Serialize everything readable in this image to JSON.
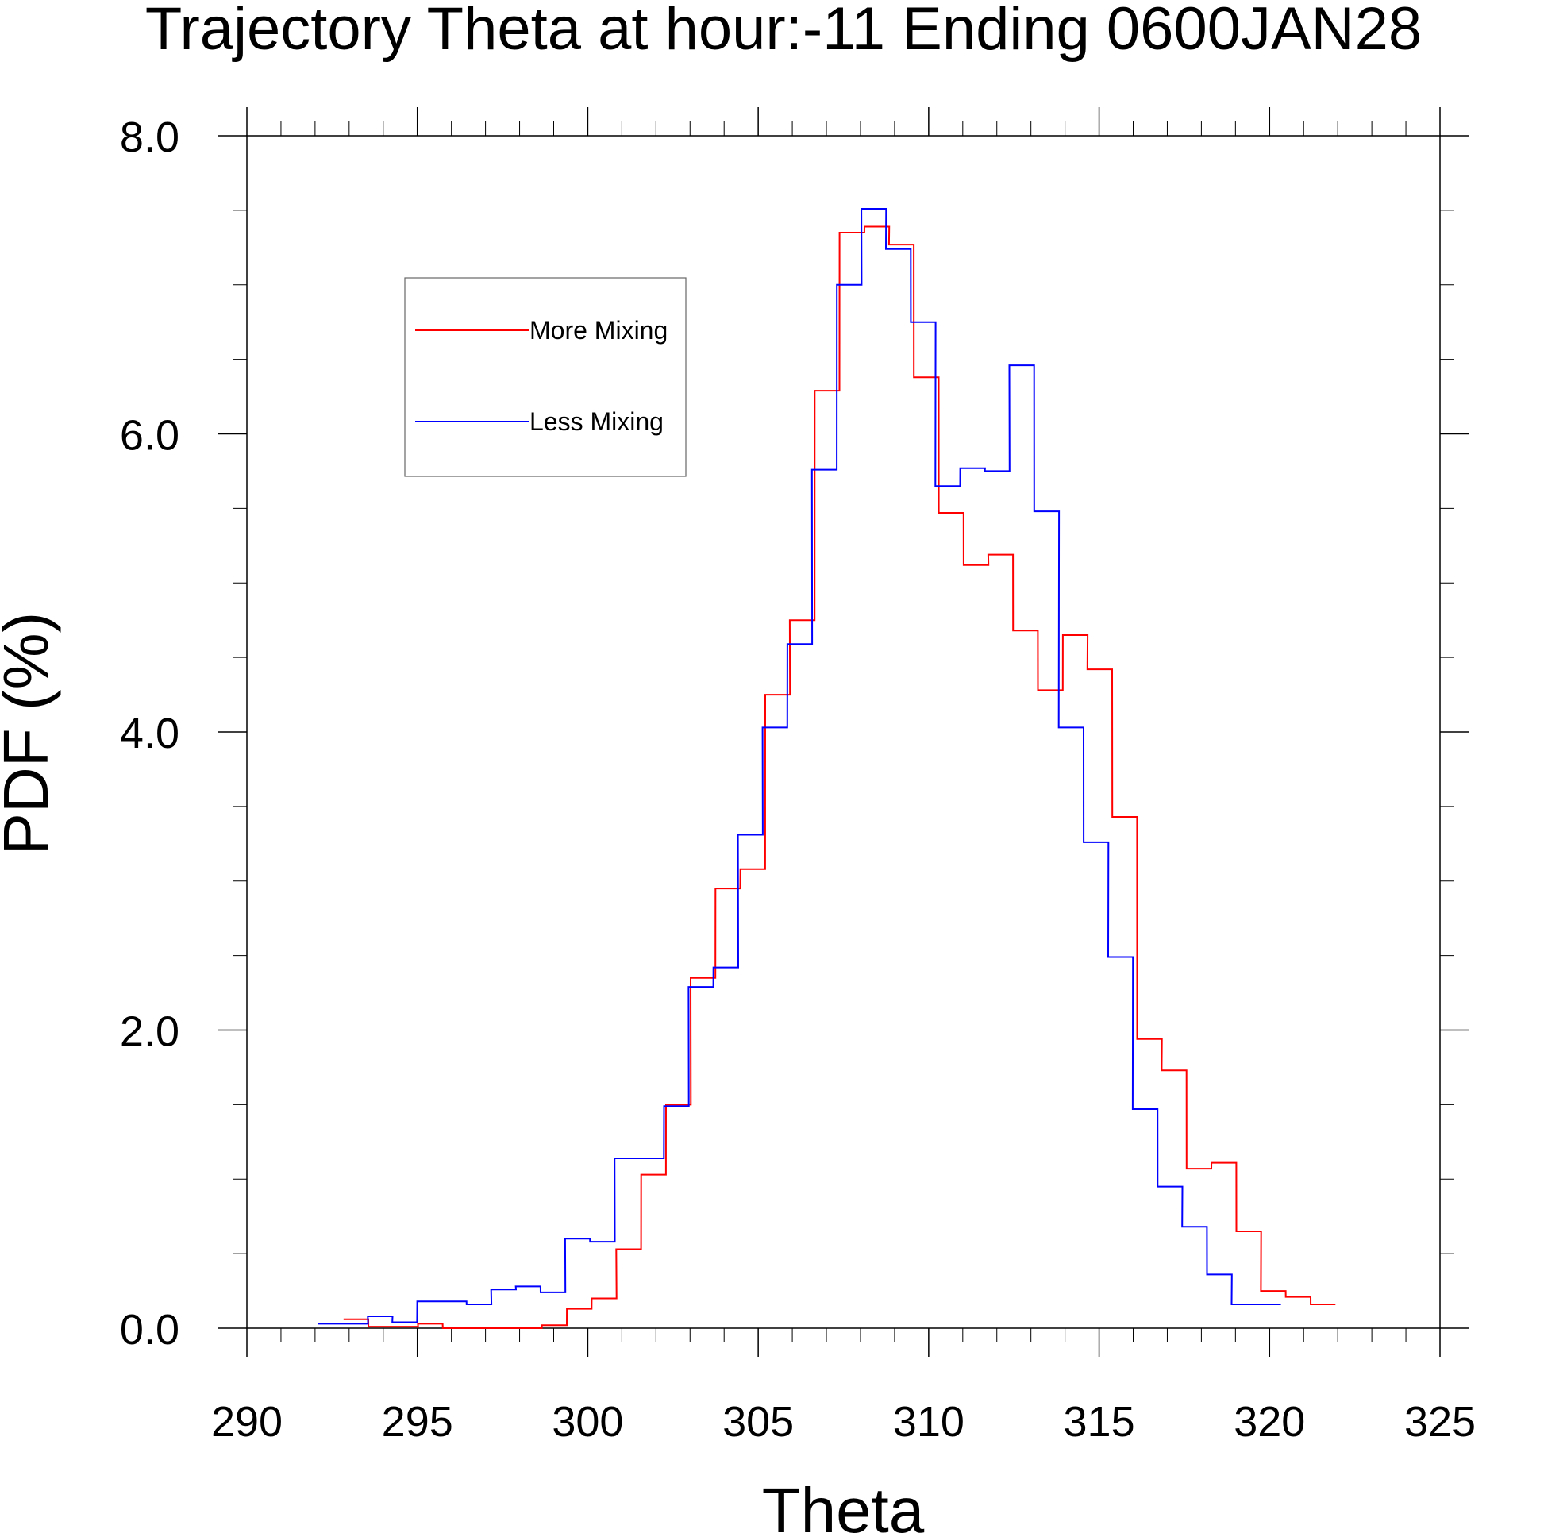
{
  "chart_data": {
    "type": "line",
    "style": "step",
    "title": "Trajectory Theta at hour:-11 Ending 0600JAN28",
    "xlabel": "Theta",
    "ylabel": "PDF (%)",
    "xlim": [
      290,
      325
    ],
    "ylim": [
      0,
      8
    ],
    "xticks": [
      "290",
      "295",
      "300",
      "305",
      "310",
      "315",
      "320",
      "325"
    ],
    "yticks": [
      "0.0",
      "2.0",
      "4.0",
      "6.0",
      "8.0"
    ],
    "grid": false,
    "legend_position": "top-left",
    "bin_width": 0.7273,
    "series": [
      {
        "name": "More Mixing",
        "color": "#ff0000",
        "x": [
          293.2,
          293.93,
          294.66,
          295.38,
          296.11,
          296.84,
          297.57,
          298.29,
          299.02,
          299.75,
          300.48,
          301.2,
          301.93,
          302.66,
          303.38,
          304.11,
          304.84,
          305.57,
          306.29,
          307.02,
          307.75,
          308.48,
          309.2,
          309.93,
          310.66,
          311.39,
          312.11,
          312.84,
          313.57,
          314.3,
          315.02,
          315.75,
          316.48,
          317.2,
          317.93,
          318.66,
          319.39,
          320.11,
          320.84,
          321.57
        ],
        "y": [
          0.06,
          0.01,
          0.01,
          0.03,
          0.0,
          0.0,
          0.0,
          0.0,
          0.02,
          0.13,
          0.2,
          0.53,
          1.03,
          1.5,
          2.35,
          2.95,
          3.08,
          4.25,
          4.75,
          6.29,
          7.35,
          7.39,
          7.27,
          6.38,
          5.47,
          5.12,
          5.19,
          4.68,
          4.28,
          4.65,
          4.42,
          3.43,
          1.94,
          1.73,
          1.07,
          1.11,
          0.65,
          0.25,
          0.21,
          0.16
        ]
      },
      {
        "name": "Less Mixing",
        "color": "#0000ff",
        "x": [
          292.46,
          293.19,
          293.91,
          294.63,
          295.36,
          296.08,
          296.81,
          297.53,
          298.25,
          298.98,
          299.7,
          300.43,
          301.15,
          301.87,
          302.6,
          303.32,
          304.05,
          304.77,
          305.49,
          306.22,
          306.94,
          307.67,
          308.39,
          309.11,
          309.84,
          310.56,
          311.29,
          312.01,
          312.73,
          313.46,
          314.18,
          314.91,
          315.63,
          316.35,
          317.08,
          317.8,
          318.53,
          319.25,
          319.97
        ],
        "y": [
          0.03,
          0.03,
          0.08,
          0.04,
          0.18,
          0.18,
          0.16,
          0.26,
          0.28,
          0.24,
          0.6,
          0.58,
          1.14,
          1.14,
          1.49,
          2.29,
          2.42,
          3.31,
          4.03,
          4.59,
          5.76,
          7.0,
          7.51,
          7.24,
          6.75,
          5.65,
          5.77,
          5.75,
          6.46,
          5.48,
          4.03,
          3.26,
          2.49,
          1.47,
          0.95,
          0.68,
          0.36,
          0.16,
          0.16
        ]
      }
    ]
  }
}
